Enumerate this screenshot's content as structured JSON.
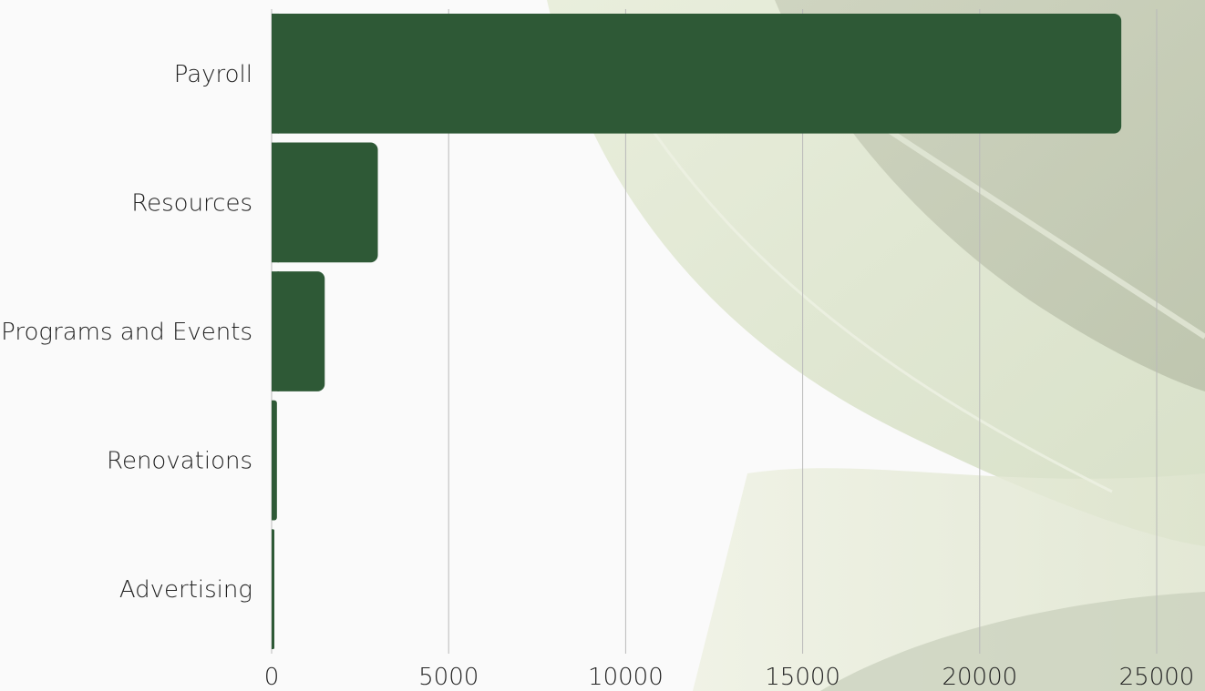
{
  "chart_data": {
    "type": "bar",
    "orientation": "horizontal",
    "title": "",
    "xlabel": "",
    "ylabel": "",
    "categories": [
      "Payroll",
      "Resources",
      "Programs and Events",
      "Renovations",
      "Advertising"
    ],
    "values": [
      24000,
      3000,
      1500,
      150,
      60
    ],
    "xlim": [
      0,
      25000
    ],
    "x_ticks": [
      "0",
      "5000",
      "10000",
      "15000",
      "20000",
      "25000"
    ],
    "grid": "vertical",
    "legend": "none",
    "colors": {
      "bar": "#2e5936",
      "grid": "#b9b9b9",
      "text": "#222222",
      "background": "#fafafa"
    }
  },
  "background": {
    "icon": "leaf-background-icon"
  }
}
